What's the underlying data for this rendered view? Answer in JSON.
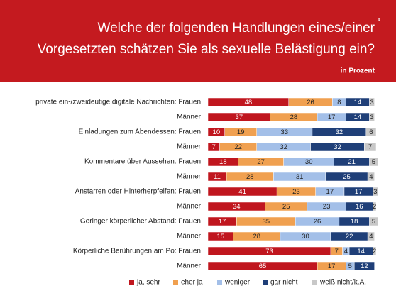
{
  "chart_data": {
    "type": "stacked-hbar",
    "title": [
      "Welche der folgenden Handlungen eines/einer",
      "Vorgesetzten schätzen Sie als sexuelle Belästigung ein?"
    ],
    "footnote_mark": "4",
    "subtitle": "in Prozent",
    "xlim": [
      0,
      100
    ],
    "categories": [
      "private ein-/zweideutige digitale Nachrichten: Frauen",
      "Männer",
      "Einladungen zum Abendessen: Frauen",
      "Männer",
      "Kommentare über Aussehen: Frauen",
      "Männer",
      "Anstarren oder Hinterherpfeifen: Frauen",
      "Männer",
      "Geringer körperlicher Abstand: Frauen",
      "Männer",
      "Körperliche Berührungen am Po: Frauen",
      "Männer"
    ],
    "series": [
      {
        "name": "ja, sehr",
        "color": "#c0161e",
        "text_color": "#ffffff",
        "values": [
          48,
          37,
          10,
          7,
          18,
          11,
          41,
          34,
          17,
          15,
          73,
          65
        ]
      },
      {
        "name": "eher ja",
        "color": "#f0a050",
        "text_color": "#222222",
        "values": [
          26,
          28,
          19,
          22,
          27,
          28,
          23,
          25,
          35,
          28,
          7,
          17
        ]
      },
      {
        "name": "weniger",
        "color": "#a3bfe8",
        "text_color": "#222222",
        "values": [
          8,
          17,
          33,
          32,
          30,
          31,
          17,
          23,
          26,
          30,
          4,
          5
        ]
      },
      {
        "name": "gar nicht",
        "color": "#1f3f78",
        "text_color": "#ffffff",
        "values": [
          14,
          14,
          32,
          32,
          21,
          25,
          17,
          16,
          18,
          22,
          14,
          12
        ]
      },
      {
        "name": "weiß nicht/k.A.",
        "color": "#c8c8c8",
        "text_color": "#222222",
        "values": [
          3,
          3,
          6,
          7,
          5,
          4,
          3,
          2,
          5,
          4,
          2,
          null
        ]
      }
    ]
  }
}
